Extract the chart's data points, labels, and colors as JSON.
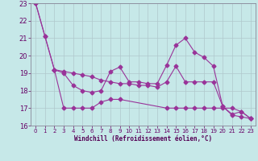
{
  "xlabel": "Windchill (Refroidissement éolien,°C)",
  "xlim": [
    -0.5,
    23.5
  ],
  "ylim": [
    16,
    23
  ],
  "yticks": [
    16,
    17,
    18,
    19,
    20,
    21,
    22,
    23
  ],
  "xticks": [
    0,
    1,
    2,
    3,
    4,
    5,
    6,
    7,
    8,
    9,
    10,
    11,
    12,
    13,
    14,
    15,
    16,
    17,
    18,
    19,
    20,
    21,
    22,
    23
  ],
  "bg_color": "#c6e8e8",
  "line_color": "#993399",
  "grid_color": "#b0c8cc",
  "line1_x": [
    0,
    1,
    2,
    3,
    4,
    5,
    6,
    7,
    8,
    9,
    10,
    11,
    12,
    13,
    14,
    15,
    16,
    17,
    18,
    19,
    20,
    21,
    22,
    23
  ],
  "line1_y": [
    23.0,
    21.1,
    19.2,
    19.1,
    19.0,
    18.9,
    18.8,
    18.6,
    18.5,
    18.4,
    18.4,
    18.3,
    18.3,
    18.2,
    18.5,
    19.4,
    18.5,
    18.5,
    18.5,
    18.5,
    17.1,
    16.6,
    16.5,
    16.4
  ],
  "line2_x": [
    0,
    1,
    2,
    3,
    4,
    5,
    6,
    7,
    8,
    9,
    10,
    11,
    12,
    13,
    14,
    15,
    16,
    17,
    18,
    19,
    20,
    21,
    22,
    23
  ],
  "line2_y": [
    23.0,
    21.1,
    19.2,
    19.0,
    18.3,
    18.0,
    17.9,
    18.0,
    19.1,
    19.35,
    18.5,
    18.5,
    18.4,
    18.4,
    19.45,
    20.6,
    21.0,
    20.2,
    19.9,
    19.4,
    17.1,
    16.65,
    16.8,
    16.4
  ],
  "line3_x": [
    2,
    3,
    4,
    5,
    6,
    7,
    8,
    9,
    14,
    15,
    16,
    17,
    18,
    19,
    20,
    21,
    22,
    23
  ],
  "line3_y": [
    19.2,
    17.0,
    17.0,
    17.0,
    17.0,
    17.35,
    17.5,
    17.5,
    17.0,
    17.0,
    17.0,
    17.0,
    17.0,
    17.0,
    17.0,
    17.0,
    16.8,
    16.4
  ]
}
